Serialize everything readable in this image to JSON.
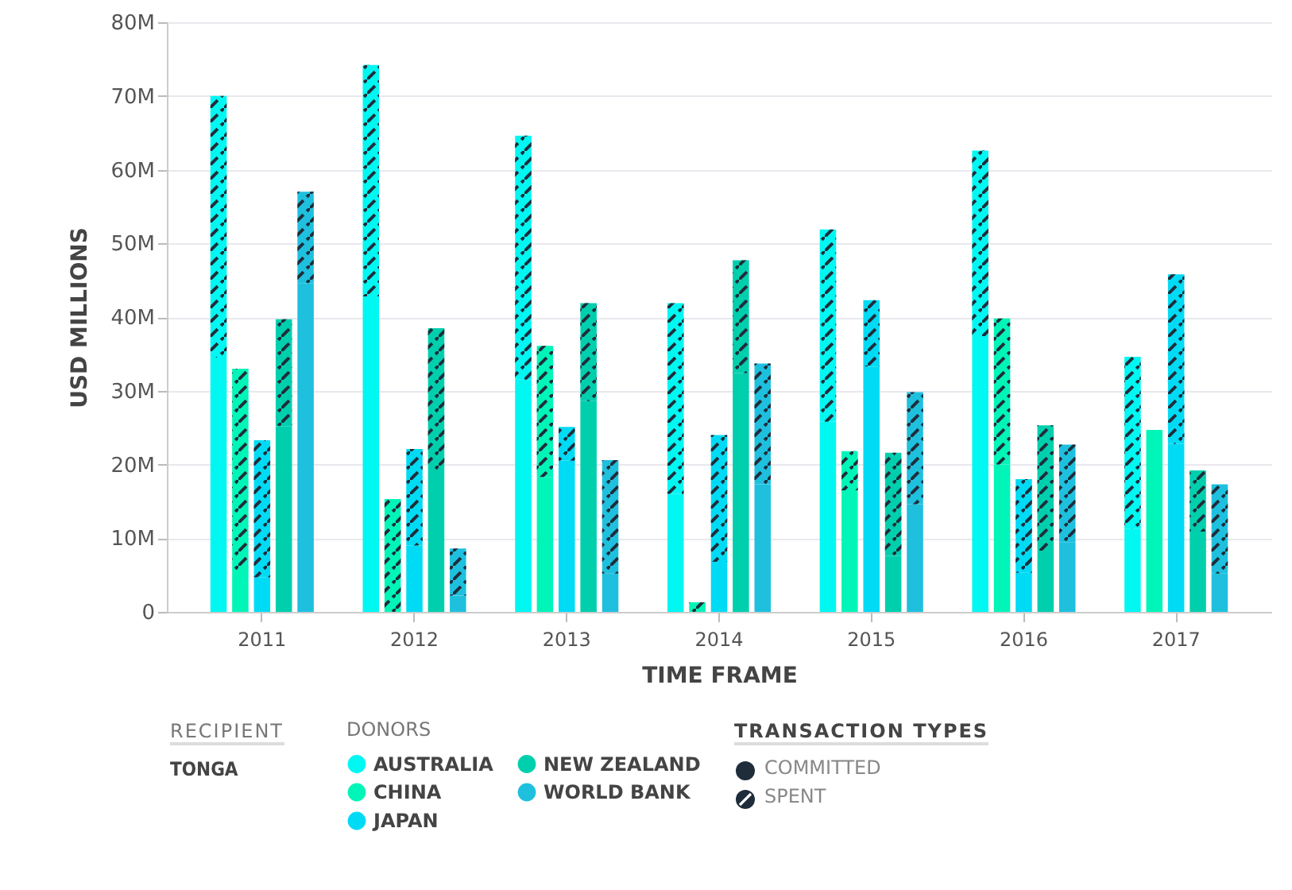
{
  "chart_data": {
    "type": "bar",
    "xlabel": "TIME FRAME",
    "ylabel": "USD MILLIONS",
    "legend_title": "DONORS",
    "legend": "bottom left",
    "grid": "y",
    "stacked": true,
    "categories": [
      null,
      null,
      null,
      "2011",
      null,
      null,
      null,
      null,
      null,
      null,
      "2012",
      null,
      null,
      null,
      null,
      null,
      null,
      "2013",
      null,
      null,
      null,
      null,
      null,
      null,
      "2014",
      null,
      null,
      null,
      null,
      null,
      null,
      "2015",
      null,
      null,
      null,
      null,
      null,
      null,
      "2016",
      null,
      null,
      null,
      null,
      null,
      null,
      "2017",
      null,
      null,
      null
    ],
    "ylim": [
      0,
      80
    ],
    "yticks": [
      0,
      {
        "value": 10,
        "label": "10M"
      },
      {
        "value": 20,
        "label": "20M"
      },
      {
        "value": 30,
        "label": "30M"
      },
      {
        "value": 40,
        "label": "40M"
      },
      {
        "value": 50,
        "label": "50M"
      },
      {
        "value": 60,
        "label": "60M"
      },
      {
        "value": 70,
        "label": "70M"
      },
      {
        "value": 80,
        "label": "80M"
      }
    ],
    "series": [
      {
        "name": "AUSTRALIA",
        "color": "#00f7f2",
        "values": [
          null,
          34.5,
          null,
          null,
          null,
          null,
          null,
          null,
          42.8,
          null,
          null,
          null,
          null,
          null,
          null,
          31.5,
          null,
          null,
          null,
          null,
          null,
          null,
          16,
          null,
          null,
          null,
          null,
          null,
          null,
          25.8,
          null,
          null,
          null,
          null,
          null,
          null,
          37.4,
          null,
          null,
          null,
          null,
          null,
          null,
          11.3,
          null,
          null,
          null,
          null,
          null
        ]
      },
      {
        "name": "CHINA",
        "color": "#00f5b8",
        "values": [
          null,
          null,
          5.5,
          null,
          null,
          null,
          null,
          null,
          null,
          0,
          null,
          null,
          null,
          null,
          null,
          null,
          18.3,
          null,
          null,
          null,
          null,
          null,
          null,
          0,
          null,
          null,
          null,
          null,
          null,
          null,
          16.5,
          null,
          null,
          null,
          null,
          null,
          null,
          20,
          null,
          null,
          null,
          null,
          null,
          null,
          24.7,
          null,
          null,
          null,
          null
        ]
      },
      {
        "name": "JAPAN",
        "color": "#00dbf5",
        "values": [
          null,
          null,
          null,
          4.7,
          null,
          null,
          null,
          null,
          null,
          null,
          9,
          null,
          null,
          null,
          null,
          null,
          null,
          20.5,
          null,
          null,
          null,
          null,
          null,
          null,
          6.8,
          null,
          null,
          null,
          null,
          null,
          null,
          33.3,
          null,
          null,
          null,
          null,
          null,
          null,
          5.3,
          null,
          null,
          null,
          null,
          null,
          null,
          22.8,
          null,
          null,
          null
        ]
      },
      {
        "name": "NEW ZEALAND",
        "color": "#00cfae",
        "values": [
          null,
          null,
          null,
          null,
          25.2,
          null,
          null,
          null,
          null,
          null,
          null,
          19.3,
          null,
          null,
          null,
          null,
          null,
          null,
          28.6,
          null,
          null,
          null,
          null,
          null,
          null,
          32.4,
          null,
          null,
          null,
          null,
          null,
          null,
          7.6,
          null,
          null,
          null,
          null,
          null,
          null,
          8.3,
          null,
          null,
          null,
          null,
          null,
          null,
          10.9,
          null,
          null
        ]
      },
      {
        "name": "WORLD BANK",
        "color": "#1ec0de",
        "values": [
          null,
          null,
          null,
          null,
          null,
          44.6,
          null,
          null,
          null,
          null,
          null,
          null,
          2.2,
          null,
          null,
          null,
          null,
          null,
          null,
          5.2,
          null,
          null,
          null,
          null,
          null,
          null,
          17.3,
          null,
          null,
          null,
          null,
          null,
          null,
          14.6,
          null,
          null,
          null,
          null,
          null,
          null,
          9.4,
          null,
          null,
          null,
          null,
          null,
          null,
          5.2,
          null
        ]
      },
      {
        "color": "#00f7f2",
        "values": [
          null,
          35.5,
          null,
          null,
          null,
          null,
          null,
          null,
          31.4,
          null,
          null,
          null,
          null,
          null,
          null,
          33.1,
          null,
          null,
          null,
          null,
          null,
          null,
          25.9,
          null,
          null,
          null,
          null,
          null,
          null,
          26.1,
          null,
          null,
          null,
          null,
          null,
          null,
          25.2,
          null,
          null,
          null,
          null,
          null,
          null,
          23.3,
          null,
          null,
          null,
          null,
          null
        ]
      },
      {
        "color": "#00f5b8",
        "values": [
          null,
          null,
          27.5,
          null,
          null,
          null,
          null,
          null,
          null,
          15.3,
          null,
          null,
          null,
          null,
          null,
          null,
          17.8,
          null,
          null,
          null,
          null,
          null,
          null,
          1.3,
          null,
          null,
          null,
          null,
          null,
          null,
          5.3,
          null,
          null,
          null,
          null,
          null,
          null,
          19.8,
          null,
          null,
          null,
          null,
          null,
          null,
          0,
          null,
          null,
          null,
          null
        ]
      },
      {
        "color": "#00dbf5",
        "values": [
          null,
          null,
          null,
          18.6,
          null,
          null,
          null,
          null,
          null,
          null,
          13.1,
          null,
          null,
          null,
          null,
          null,
          null,
          4.6,
          null,
          null,
          null,
          null,
          null,
          null,
          17.2,
          null,
          null,
          null,
          null,
          null,
          null,
          9,
          null,
          null,
          null,
          null,
          null,
          null,
          12.7,
          null,
          null,
          null,
          null,
          null,
          null,
          23,
          null,
          null,
          null
        ]
      },
      {
        "color": "#00cfae",
        "values": [
          null,
          null,
          null,
          null,
          14.5,
          null,
          null,
          null,
          null,
          null,
          null,
          19.2,
          null,
          null,
          null,
          null,
          null,
          null,
          13.3,
          null,
          null,
          null,
          null,
          null,
          null,
          15.3,
          null,
          null,
          null,
          null,
          null,
          null,
          14,
          null,
          null,
          null,
          null,
          null,
          null,
          17,
          null,
          null,
          null,
          null,
          null,
          null,
          8.3,
          null,
          null
        ]
      },
      {
        "color": "#1ec0de",
        "values": [
          null,
          null,
          null,
          null,
          null,
          12.4,
          null,
          null,
          null,
          null,
          null,
          null,
          6.4,
          null,
          null,
          null,
          null,
          null,
          null,
          15.4,
          null,
          null,
          null,
          null,
          null,
          null,
          16.4,
          null,
          null,
          null,
          null,
          null,
          null,
          15.2,
          null,
          null,
          null,
          null,
          null,
          null,
          13.3,
          null,
          null,
          null,
          null,
          null,
          null,
          12.1,
          null
        ]
      }
    ],
    "annotations": [
      "RECIPIENT",
      "TONGA",
      "TRANSACTION TYPES",
      "COMMITTED",
      "SPENT"
    ]
  }
}
